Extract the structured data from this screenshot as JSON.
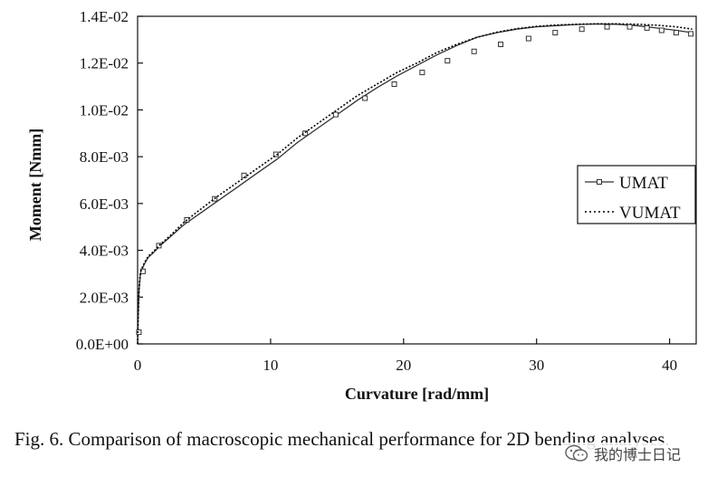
{
  "chart_data": {
    "type": "line",
    "title": "",
    "xlabel": "Curvature [rad/mm]",
    "ylabel": "Moment [Nmm]",
    "xlim": [
      0,
      42
    ],
    "ylim": [
      0,
      0.014
    ],
    "x_ticks": [
      0,
      10,
      20,
      30,
      40
    ],
    "x_tick_labels": [
      "0",
      "10",
      "20",
      "30",
      "40"
    ],
    "y_ticks": [
      0,
      0.002,
      0.004,
      0.006,
      0.008,
      0.01,
      0.012,
      0.014
    ],
    "y_tick_labels": [
      "0.0E+00",
      "2.0E-03",
      "4.0E-03",
      "6.0E-03",
      "8.0E-03",
      "1.0E-02",
      "1.2E-02",
      "1.4E-02"
    ],
    "grid": false,
    "legend_position": "right",
    "series": [
      {
        "name": "UMAT",
        "style": "solid-square-markers",
        "color": "#333333",
        "x": [
          0,
          0.05,
          0.1,
          0.2,
          0.3,
          0.5,
          0.8,
          1.2,
          1.7,
          2.5,
          3.5,
          4.5,
          6,
          7.5,
          9,
          10.5,
          12,
          13.5,
          15,
          16.5,
          18,
          19.5,
          21,
          22.5,
          24,
          25.5,
          27,
          28.5,
          30,
          31.5,
          33,
          34.5,
          36,
          37.5,
          39,
          40.5,
          41.7
        ],
        "y": [
          0,
          0.0012,
          0.0022,
          0.0029,
          0.00315,
          0.0034,
          0.0037,
          0.0039,
          0.0042,
          0.0046,
          0.0051,
          0.0055,
          0.0061,
          0.0067,
          0.0073,
          0.0079,
          0.0086,
          0.0092,
          0.0098,
          0.0104,
          0.01095,
          0.01145,
          0.0119,
          0.01235,
          0.01275,
          0.0131,
          0.0133,
          0.01345,
          0.01355,
          0.0136,
          0.01365,
          0.01367,
          0.01366,
          0.0136,
          0.0135,
          0.0134,
          0.0133
        ],
        "marker_x": [
          0.1,
          0.4,
          1.6,
          3.7,
          5.8,
          8.0,
          10.4,
          12.6,
          14.9,
          17.1,
          19.3,
          21.4,
          23.3,
          25.3,
          27.3,
          29.4,
          31.4,
          33.4,
          35.3,
          37.0,
          38.3,
          39.4,
          40.5,
          41.6
        ],
        "marker_y": [
          0.0005,
          0.0031,
          0.0042,
          0.0053,
          0.0062,
          0.0072,
          0.0081,
          0.009,
          0.0098,
          0.0105,
          0.0111,
          0.0116,
          0.0121,
          0.0125,
          0.0128,
          0.01305,
          0.0133,
          0.01345,
          0.01355,
          0.01355,
          0.0135,
          0.0134,
          0.0133,
          0.01325
        ]
      },
      {
        "name": "VUMAT",
        "style": "dotted",
        "color": "#000000",
        "x": [
          0,
          0.05,
          0.1,
          0.2,
          0.3,
          0.5,
          0.8,
          1.2,
          1.7,
          2.5,
          3.5,
          4.5,
          6,
          7.5,
          9,
          10.5,
          12,
          13.5,
          15,
          16.5,
          18,
          19.5,
          21,
          22.5,
          24,
          25.5,
          27,
          28.5,
          30,
          31.5,
          33,
          34.5,
          36,
          37.5,
          39,
          40.5,
          41.7
        ],
        "y": [
          0,
          0.0013,
          0.0023,
          0.003,
          0.0032,
          0.00345,
          0.00375,
          0.00395,
          0.00425,
          0.00465,
          0.0052,
          0.00565,
          0.0063,
          0.0069,
          0.0075,
          0.0081,
          0.0088,
          0.0094,
          0.01,
          0.0106,
          0.0111,
          0.0116,
          0.012,
          0.01245,
          0.0128,
          0.0131,
          0.01332,
          0.01347,
          0.01357,
          0.01363,
          0.01366,
          0.01368,
          0.01368,
          0.01366,
          0.01362,
          0.01355,
          0.01345
        ]
      }
    ]
  },
  "caption": {
    "text": "Fig. 6. Comparison of macroscopic mechanical performance for 2D bending analyses."
  },
  "watermark": {
    "text": "我的博士日记",
    "icon": "wechat-icon"
  }
}
